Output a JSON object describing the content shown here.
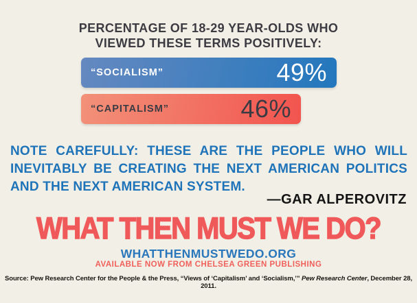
{
  "poster": {
    "background_color": "#F2F0E6"
  },
  "header": {
    "title_line1": "PERCENTAGE OF 18-29 YEAR-OLDS WHO",
    "title_line2": "VIEWED THESE TERMS POSITIVELY:"
  },
  "chart_data": {
    "type": "bar",
    "orientation": "horizontal",
    "title": "PERCENTAGE OF 18-29 YEAR-OLDS WHO VIEWED THESE TERMS POSITIVELY:",
    "categories": [
      "“SOCIALISM”",
      "“CAPITALISM”"
    ],
    "values": [
      49,
      46
    ],
    "value_labels": [
      "49%",
      "46%"
    ],
    "bar_colors": {
      "socialism_gradient": [
        "#6589C0",
        "#2377BD"
      ],
      "capitalism_gradient": [
        "#F29179",
        "#F2544E"
      ]
    },
    "grid": false,
    "axes_shown": false
  },
  "quote": {
    "lines": [
      "NOTE CAREFULLY: THESE ARE THE PEOPLE WHO WILL",
      "INEVITABLY BE CREATING THE NEXT AMERICAN POLITICS",
      "AND THE NEXT AMERICAN SYSTEM."
    ],
    "full_text": "NOTE CAREFULLY: THESE ARE THE PEOPLE WHO WILL INEVITABLY BE CREATING THE NEXT AMERICAN POLITICS AND THE NEXT AMERICAN SYSTEM.",
    "attribution": "—GAR ALPEROVITZ",
    "text_color": "#1E73B9"
  },
  "footer": {
    "headline": "WHAT THEN MUST WE DO?",
    "headline_color": "#F0595A",
    "website": "WHATTHENMUSTWEDO.ORG",
    "website_color": "#2A77BC",
    "availability": "AVAILABLE NOW FROM CHELSEA GREEN PUBLISHING",
    "availability_color": "#F0605B",
    "source_prefix": "Source: Pew Research Center for the People & the Press, “Views of ‘Capitalism’ and ‘Socialism,’” ",
    "source_italic": "Pew Research Center",
    "source_suffix": ", December 28, 2011."
  }
}
